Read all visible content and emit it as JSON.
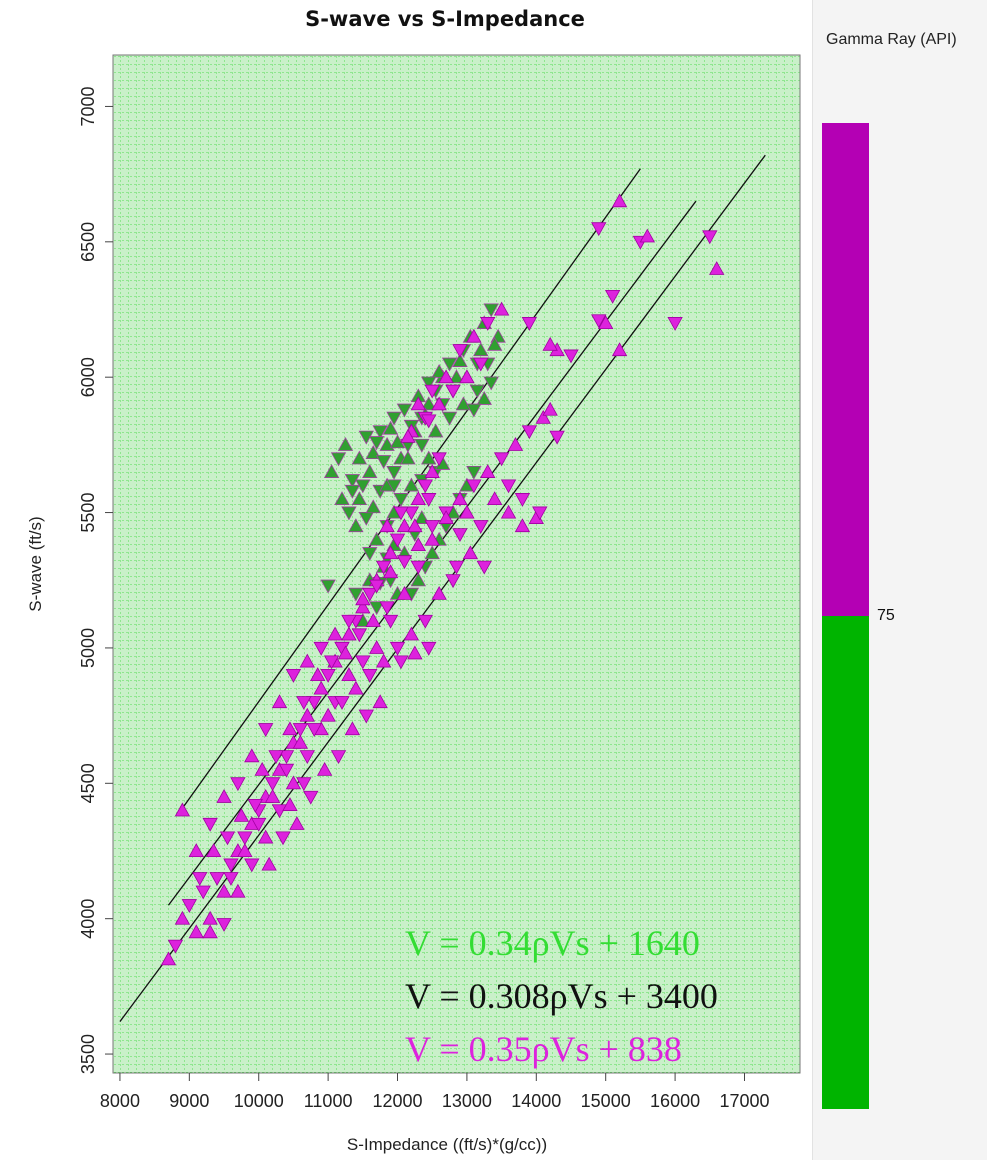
{
  "chart_data": {
    "type": "scatter",
    "title": "S-wave vs S-Impedance",
    "xlabel": "S-Impedance ((ft/s)*(g/cc))",
    "ylabel": "S-wave (ft/s)",
    "xlim": [
      7900,
      17800
    ],
    "ylim": [
      3430,
      7190
    ],
    "xticks": [
      8000,
      9000,
      10000,
      11000,
      12000,
      13000,
      14000,
      15000,
      16000,
      17000
    ],
    "xtick_labels": [
      "8000",
      "9000",
      "10000",
      "11000",
      "12000",
      "13000",
      "14000",
      "15000",
      "16000",
      "17000"
    ],
    "yticks": [
      3500,
      4000,
      4500,
      5000,
      5500,
      6000,
      6500,
      7000
    ],
    "ytick_labels": [
      "3500",
      "4000",
      "4500",
      "5000",
      "5500",
      "6000",
      "6500",
      "7000"
    ],
    "grid": true,
    "background": "#c9f0c9",
    "grid_color": "#55dd55",
    "colorbar": {
      "title": "Gamma Ray (API)",
      "threshold_label": "75",
      "high_color": "#b400b4",
      "low_color": "#00b400"
    },
    "trend_lines": [
      {
        "label": "V = 0.34ρVs + 1640",
        "x": [
          8850,
          15500
        ],
        "y": [
          4390,
          6770
        ],
        "label_color": "#33dd33"
      },
      {
        "label": "V = 0.308ρVs + 3400",
        "x": [
          8700,
          16300
        ],
        "y": [
          4050,
          6650
        ],
        "label_color": "#111111"
      },
      {
        "label": "V = 0.35ρVs + 838",
        "x": [
          8000,
          17300
        ],
        "y": [
          3620,
          6820
        ],
        "label_color": "#dd22dd"
      }
    ],
    "series": [
      {
        "color": "#30a030",
        "points": [
          [
            11050,
            5650
          ],
          [
            11150,
            5700
          ],
          [
            11250,
            5750
          ],
          [
            11350,
            5620
          ],
          [
            11450,
            5700
          ],
          [
            11550,
            5780
          ],
          [
            11650,
            5720
          ],
          [
            11750,
            5800
          ],
          [
            11850,
            5750
          ],
          [
            11950,
            5850
          ],
          [
            11200,
            5550
          ],
          [
            11300,
            5500
          ],
          [
            11400,
            5450
          ],
          [
            11550,
            5480
          ],
          [
            11650,
            5520
          ],
          [
            11750,
            5580
          ],
          [
            11850,
            5600
          ],
          [
            11950,
            5650
          ],
          [
            12050,
            5700
          ],
          [
            12150,
            5750
          ],
          [
            12250,
            5800
          ],
          [
            12350,
            5850
          ],
          [
            12450,
            5900
          ],
          [
            12550,
            5950
          ],
          [
            12650,
            6000
          ],
          [
            12750,
            6050
          ],
          [
            12850,
            6000
          ],
          [
            12950,
            6100
          ],
          [
            13050,
            6150
          ],
          [
            13150,
            6050
          ],
          [
            13250,
            6200
          ],
          [
            13350,
            6250
          ],
          [
            13450,
            6150
          ],
          [
            13150,
            5950
          ],
          [
            12950,
            5900
          ],
          [
            12750,
            5850
          ],
          [
            12550,
            5800
          ],
          [
            12350,
            5750
          ],
          [
            12150,
            5700
          ],
          [
            11950,
            5600
          ],
          [
            11450,
            5550
          ],
          [
            11350,
            5580
          ],
          [
            13200,
            6100
          ],
          [
            13300,
            6050
          ],
          [
            12900,
            6060
          ],
          [
            12650,
            5900
          ],
          [
            12400,
            5860
          ],
          [
            12200,
            5820
          ],
          [
            12000,
            5760
          ],
          [
            11800,
            5690
          ],
          [
            11600,
            5650
          ],
          [
            11500,
            5600
          ],
          [
            13000,
            6000
          ],
          [
            12800,
            5950
          ],
          [
            12600,
            6020
          ],
          [
            12450,
            5980
          ],
          [
            12300,
            5930
          ],
          [
            12100,
            5880
          ],
          [
            11900,
            5810
          ],
          [
            11700,
            5760
          ],
          [
            13400,
            6120
          ],
          [
            13350,
            5980
          ],
          [
            13250,
            5920
          ],
          [
            13100,
            5880
          ],
          [
            12200,
            5600
          ],
          [
            12050,
            5550
          ],
          [
            11950,
            5500
          ],
          [
            11850,
            5450
          ],
          [
            11700,
            5400
          ],
          [
            11600,
            5350
          ],
          [
            11800,
            5300
          ],
          [
            11900,
            5250
          ],
          [
            12000,
            5200
          ],
          [
            11700,
            5150
          ],
          [
            11500,
            5100
          ],
          [
            11400,
            5200
          ],
          [
            11300,
            5050
          ],
          [
            11200,
            5000
          ],
          [
            11600,
            5250
          ],
          [
            11000,
            5230
          ],
          [
            12600,
            5400
          ],
          [
            12700,
            5450
          ],
          [
            12800,
            5500
          ],
          [
            12900,
            5550
          ],
          [
            13000,
            5600
          ],
          [
            13100,
            5650
          ],
          [
            12500,
            5350
          ],
          [
            12400,
            5300
          ],
          [
            12300,
            5250
          ],
          [
            12200,
            5200
          ],
          [
            12450,
            5700
          ],
          [
            12550,
            5650
          ],
          [
            12650,
            5680
          ],
          [
            12350,
            5620
          ],
          [
            11950,
            5380
          ],
          [
            11850,
            5330
          ],
          [
            12100,
            5350
          ],
          [
            12250,
            5420
          ],
          [
            12350,
            5480
          ],
          [
            11750,
            5240
          ]
        ]
      },
      {
        "color": "#dd22dd",
        "points": [
          [
            8700,
            3850
          ],
          [
            8800,
            3900
          ],
          [
            8900,
            4000
          ],
          [
            9000,
            4050
          ],
          [
            9100,
            3950
          ],
          [
            9200,
            4100
          ],
          [
            9300,
            4000
          ],
          [
            9400,
            4150
          ],
          [
            9500,
            4100
          ],
          [
            9600,
            4200
          ],
          [
            9700,
            4250
          ],
          [
            9800,
            4300
          ],
          [
            9900,
            4350
          ],
          [
            10000,
            4400
          ],
          [
            10100,
            4450
          ],
          [
            10200,
            4500
          ],
          [
            10300,
            4550
          ],
          [
            10400,
            4600
          ],
          [
            10500,
            4650
          ],
          [
            10600,
            4700
          ],
          [
            10700,
            4750
          ],
          [
            10800,
            4800
          ],
          [
            10900,
            4850
          ],
          [
            11000,
            4900
          ],
          [
            11100,
            4950
          ],
          [
            11200,
            5000
          ],
          [
            11300,
            5050
          ],
          [
            11400,
            5100
          ],
          [
            11500,
            5150
          ],
          [
            11600,
            5200
          ],
          [
            11700,
            5250
          ],
          [
            11800,
            5300
          ],
          [
            11900,
            5350
          ],
          [
            12000,
            5400
          ],
          [
            12100,
            5450
          ],
          [
            12200,
            5500
          ],
          [
            12300,
            5550
          ],
          [
            12400,
            5600
          ],
          [
            12500,
            5650
          ],
          [
            12600,
            5700
          ],
          [
            9300,
            3950
          ],
          [
            9500,
            3980
          ],
          [
            9700,
            4100
          ],
          [
            9900,
            4200
          ],
          [
            10100,
            4300
          ],
          [
            10300,
            4400
          ],
          [
            10500,
            4500
          ],
          [
            10700,
            4600
          ],
          [
            10900,
            4700
          ],
          [
            11100,
            4800
          ],
          [
            11300,
            4900
          ],
          [
            11500,
            4950
          ],
          [
            11700,
            5000
          ],
          [
            11900,
            5100
          ],
          [
            12100,
            5200
          ],
          [
            12300,
            5300
          ],
          [
            12500,
            5400
          ],
          [
            12700,
            5500
          ],
          [
            12900,
            5550
          ],
          [
            13100,
            5600
          ],
          [
            9100,
            4250
          ],
          [
            9300,
            4350
          ],
          [
            9500,
            4450
          ],
          [
            9700,
            4500
          ],
          [
            9900,
            4600
          ],
          [
            10100,
            4700
          ],
          [
            10300,
            4800
          ],
          [
            10500,
            4900
          ],
          [
            10700,
            4950
          ],
          [
            10900,
            5000
          ],
          [
            11100,
            5050
          ],
          [
            11300,
            5100
          ],
          [
            11500,
            5180
          ],
          [
            11700,
            5230
          ],
          [
            11900,
            5280
          ],
          [
            12100,
            5320
          ],
          [
            12300,
            5380
          ],
          [
            12500,
            5450
          ],
          [
            12700,
            5480
          ],
          [
            12900,
            5420
          ],
          [
            13300,
            5650
          ],
          [
            13500,
            5700
          ],
          [
            13700,
            5750
          ],
          [
            13900,
            5800
          ],
          [
            14100,
            5850
          ],
          [
            14300,
            5780
          ],
          [
            13600,
            5500
          ],
          [
            13800,
            5550
          ],
          [
            14000,
            5480
          ],
          [
            13200,
            5450
          ],
          [
            13400,
            5550
          ],
          [
            13600,
            5600
          ],
          [
            13000,
            5500
          ],
          [
            12800,
            5250
          ],
          [
            12600,
            5200
          ],
          [
            12400,
            5100
          ],
          [
            12200,
            5050
          ],
          [
            12000,
            5000
          ],
          [
            11800,
            4950
          ],
          [
            11600,
            4900
          ],
          [
            11400,
            4850
          ],
          [
            11200,
            4800
          ],
          [
            11000,
            4750
          ],
          [
            10800,
            4700
          ],
          [
            10600,
            4650
          ],
          [
            10400,
            4550
          ],
          [
            10200,
            4450
          ],
          [
            10000,
            4350
          ],
          [
            9800,
            4250
          ],
          [
            9600,
            4150
          ],
          [
            12200,
            5800
          ],
          [
            12400,
            5850
          ],
          [
            12600,
            5900
          ],
          [
            12800,
            5950
          ],
          [
            13000,
            6000
          ],
          [
            13200,
            6050
          ],
          [
            12300,
            5900
          ],
          [
            12500,
            5950
          ],
          [
            12700,
            6000
          ],
          [
            12900,
            6100
          ],
          [
            13100,
            6150
          ],
          [
            13300,
            6200
          ],
          [
            13500,
            6250
          ],
          [
            13900,
            6200
          ],
          [
            14300,
            6100
          ],
          [
            14500,
            6080
          ],
          [
            14200,
            6120
          ],
          [
            14900,
            6550
          ],
          [
            15000,
            6200
          ],
          [
            15100,
            6300
          ],
          [
            15200,
            6650
          ],
          [
            15500,
            6500
          ],
          [
            15600,
            6520
          ],
          [
            16500,
            6520
          ],
          [
            16600,
            6400
          ],
          [
            16000,
            6200
          ],
          [
            15200,
            6100
          ],
          [
            14900,
            6210
          ],
          [
            12150,
            5780
          ],
          [
            12450,
            5840
          ],
          [
            10050,
            4550
          ],
          [
            10250,
            4600
          ],
          [
            10450,
            4700
          ],
          [
            10650,
            4800
          ],
          [
            10850,
            4900
          ],
          [
            11050,
            4950
          ],
          [
            11250,
            4980
          ],
          [
            11450,
            5050
          ],
          [
            11650,
            5100
          ],
          [
            11850,
            5150
          ],
          [
            10150,
            4200
          ],
          [
            10350,
            4300
          ],
          [
            10550,
            4350
          ],
          [
            10750,
            4450
          ],
          [
            10950,
            4550
          ],
          [
            11150,
            4600
          ],
          [
            11350,
            4700
          ],
          [
            11550,
            4750
          ],
          [
            11750,
            4800
          ],
          [
            12050,
            4950
          ],
          [
            12250,
            4980
          ],
          [
            12450,
            5000
          ],
          [
            8900,
            4400
          ],
          [
            9150,
            4150
          ],
          [
            9350,
            4250
          ],
          [
            9550,
            4300
          ],
          [
            9750,
            4380
          ],
          [
            9950,
            4420
          ],
          [
            10450,
            4420
          ],
          [
            10650,
            4500
          ],
          [
            13800,
            5450
          ],
          [
            14050,
            5500
          ],
          [
            14200,
            5880
          ],
          [
            13250,
            5300
          ],
          [
            13050,
            5350
          ],
          [
            12850,
            5300
          ],
          [
            11850,
            5450
          ],
          [
            12050,
            5500
          ],
          [
            12250,
            5450
          ],
          [
            12450,
            5550
          ]
        ]
      }
    ]
  }
}
